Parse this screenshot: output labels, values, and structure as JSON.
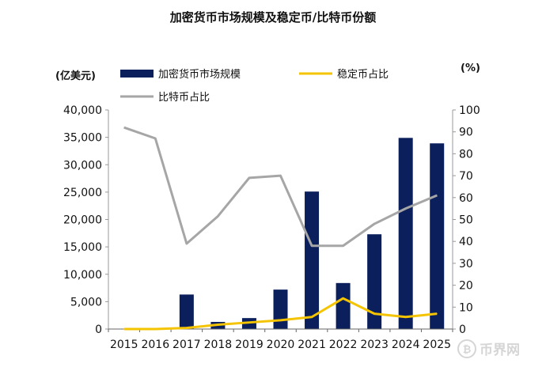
{
  "chart_data": {
    "type": "bar+line",
    "title": "加密货币市场规模及稳定币/比特币份额",
    "ylabel_left": "(亿美元)",
    "ylabel_right": "(%)",
    "categories": [
      "2015",
      "2016",
      "2017",
      "2018",
      "2019",
      "2020",
      "2021",
      "2022",
      "2023",
      "2024",
      "2025"
    ],
    "ylim_left": [
      0,
      40000
    ],
    "yticks_left": [
      "0",
      "5,000",
      "10,000",
      "15,000",
      "20,000",
      "25,000",
      "30,000",
      "35,000",
      "40,000"
    ],
    "ylim_right": [
      0,
      100
    ],
    "yticks_right": [
      "0",
      "10",
      "20",
      "30",
      "40",
      "50",
      "60",
      "70",
      "80",
      "90",
      "100"
    ],
    "series": [
      {
        "name": "加密货币市场规模",
        "type": "bar",
        "axis": "left",
        "color": "#0b1f5c",
        "values": [
          0,
          0,
          6300,
          1300,
          2000,
          7200,
          25100,
          8400,
          17300,
          34900,
          33900
        ]
      },
      {
        "name": "稳定币占比",
        "type": "line",
        "axis": "right",
        "color": "#f5c400",
        "values": [
          0,
          0,
          0.5,
          2,
          3,
          4,
          5.5,
          14,
          7,
          5.5,
          7
        ]
      },
      {
        "name": "比特币占比",
        "type": "line",
        "axis": "right",
        "color": "#a6a6a6",
        "values": [
          92,
          87,
          39,
          51.5,
          69,
          70,
          38,
          38,
          48,
          55,
          61
        ]
      }
    ],
    "legend": "top",
    "grid": false
  },
  "watermark": "币界网"
}
